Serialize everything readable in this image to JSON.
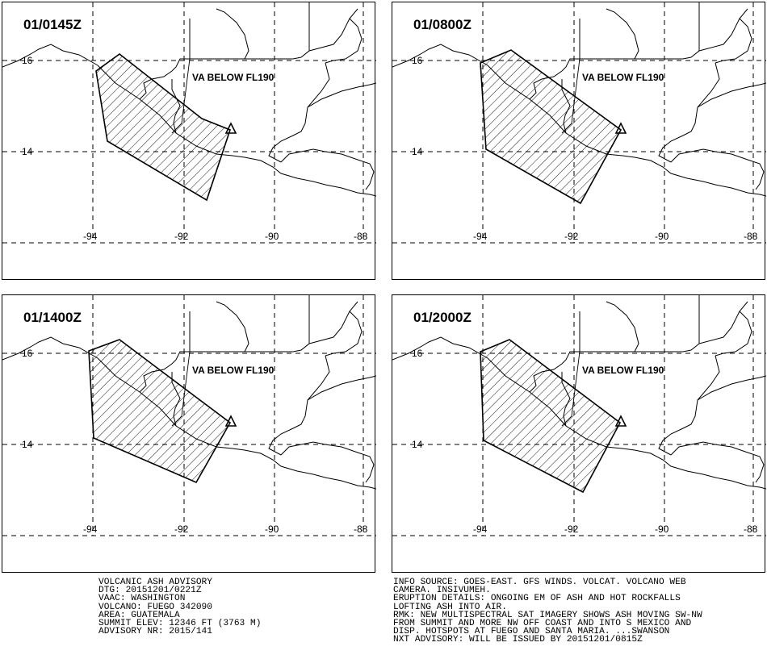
{
  "panels": [
    {
      "time": "01/0145Z",
      "note": "VA BELOW FL190"
    },
    {
      "time": "01/0800Z",
      "note": "VA BELOW FL190"
    },
    {
      "time": "01/1400Z",
      "note": "VA BELOW FL190"
    },
    {
      "time": "01/2000Z",
      "note": "VA BELOW FL190"
    }
  ],
  "lat_labels": [
    "16",
    "14"
  ],
  "lon_labels": [
    "-94",
    "-92",
    "-90",
    "-88"
  ],
  "advisory_left": [
    "VOLCANIC ASH ADVISORY",
    "DTG: 20151201/0221Z",
    "VAAC: WASHINGTON",
    "VOLCANO: FUEGO 342090",
    "AREA: GUATEMALA",
    "SUMMIT ELEV: 12346 FT (3763 M)",
    "ADVISORY NR: 2015/141"
  ],
  "advisory_right": [
    "INFO SOURCE: GOES-EAST. GFS WINDS. VOLCAT. VOLCANO WEB",
    "CAMERA. INSIVUMEH.",
    "ERUPTION DETAILS: ONGOING EM OF ASH AND HOT ROCKFALLS",
    "LOFTING ASH INTO AIR.",
    "RMK: NEW MULTISPECTRAL SAT IMAGERY SHOWS ASH MOVING SW-NW",
    "FROM SUMMIT AND MORE NW OFF COAST AND INTO S MEXICO AND",
    "DISP. HOTSPOTS AT FUEGO AND SANTA MARIA. ...SWANSON",
    "NXT ADVISORY: WILL BE ISSUED BY 20151201/0815Z"
  ],
  "colors": {
    "lines": "#000000",
    "background": "#ffffff"
  }
}
